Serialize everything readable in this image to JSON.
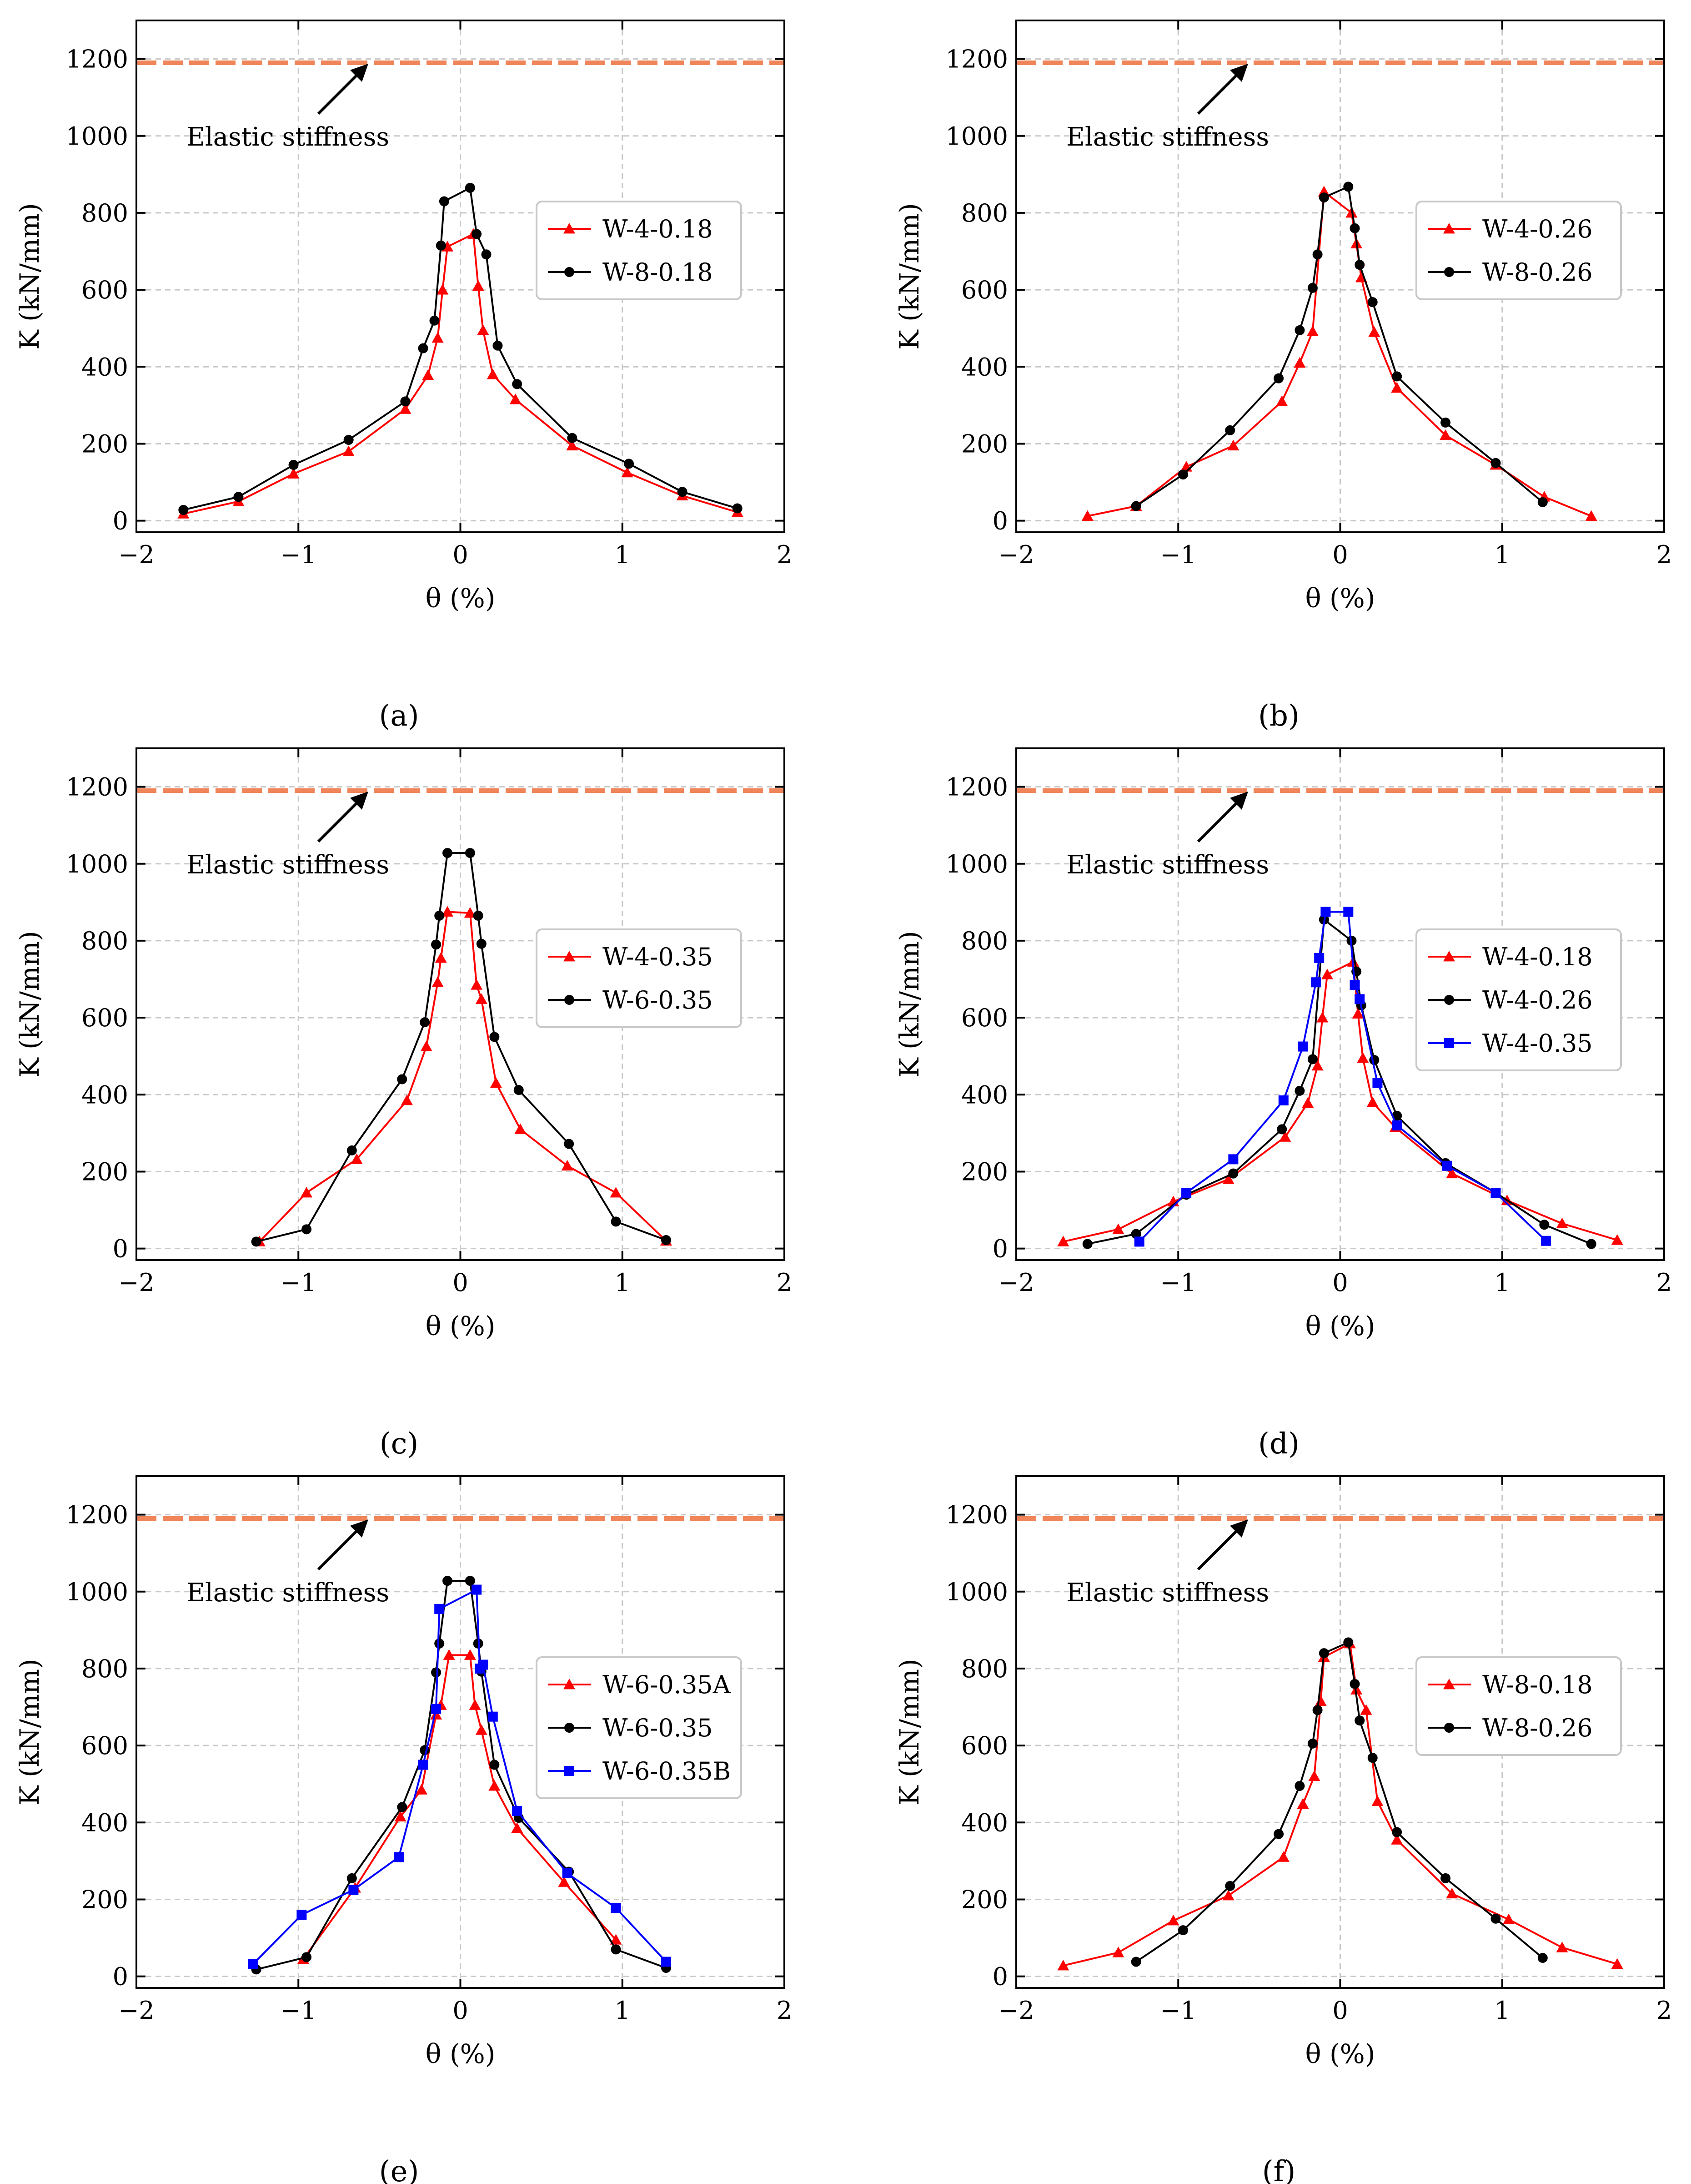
{
  "figure": {
    "common": {
      "xlabel": "θ (%)",
      "ylabel": "K (kN/mm)",
      "xticks": [
        -2,
        -1,
        0,
        1,
        2
      ],
      "xtick_labels": [
        "−2",
        "−1",
        "0",
        "1",
        "2"
      ],
      "yticks": [
        0,
        200,
        400,
        600,
        800,
        1000,
        1200
      ],
      "xlim": [
        -2,
        2
      ],
      "ylim": [
        -30,
        1300
      ],
      "elastic_value": 1190,
      "elastic_label": "Elastic stiffness",
      "elastic_color": "#f0855a",
      "grid": true
    }
  },
  "chart_data": [
    {
      "type": "line",
      "panel_label": "(a)",
      "xlabel": "θ (%)",
      "ylabel": "K (kN/mm)",
      "xlim": [
        -2,
        2
      ],
      "ylim": [
        -30,
        1300
      ],
      "legend": "right",
      "series": [
        {
          "name": "W-4-0.18",
          "color": "#ff0000",
          "marker": "triangle",
          "x": [
            -1.71,
            -1.37,
            -1.03,
            -0.69,
            -0.34,
            -0.2,
            -0.14,
            -0.11,
            -0.08,
            0.08,
            0.11,
            0.14,
            0.2,
            0.34,
            0.69,
            1.03,
            1.37,
            1.71
          ],
          "y": [
            18,
            50,
            122,
            180,
            290,
            378,
            475,
            600,
            712,
            745,
            610,
            495,
            380,
            315,
            195,
            125,
            65,
            22
          ]
        },
        {
          "name": "W-8-0.18",
          "color": "#000000",
          "marker": "circle",
          "x": [
            -1.71,
            -1.37,
            -1.03,
            -0.69,
            -0.34,
            -0.23,
            -0.16,
            -0.12,
            -0.1,
            0.06,
            0.1,
            0.16,
            0.23,
            0.35,
            0.69,
            1.04,
            1.37,
            1.71
          ],
          "y": [
            28,
            62,
            145,
            210,
            310,
            448,
            520,
            715,
            830,
            865,
            745,
            692,
            455,
            355,
            215,
            148,
            75,
            32
          ]
        }
      ]
    },
    {
      "type": "line",
      "panel_label": "(b)",
      "xlabel": "θ (%)",
      "ylabel": "K (kN/mm)",
      "xlim": [
        -2,
        2
      ],
      "ylim": [
        -30,
        1300
      ],
      "legend": "right",
      "series": [
        {
          "name": "W-4-0.26",
          "color": "#ff0000",
          "marker": "triangle",
          "x": [
            -1.56,
            -1.26,
            -0.95,
            -0.66,
            -0.36,
            -0.25,
            -0.17,
            -0.1,
            0.07,
            0.1,
            0.13,
            0.21,
            0.35,
            0.65,
            0.96,
            1.26,
            1.55
          ],
          "y": [
            12,
            38,
            140,
            195,
            310,
            410,
            492,
            855,
            800,
            720,
            632,
            490,
            345,
            222,
            145,
            62,
            12
          ]
        },
        {
          "name": "W-8-0.26",
          "color": "#000000",
          "marker": "circle",
          "x": [
            -1.26,
            -0.97,
            -0.68,
            -0.38,
            -0.25,
            -0.17,
            -0.14,
            -0.1,
            0.05,
            0.09,
            0.12,
            0.2,
            0.35,
            0.65,
            0.96,
            1.25
          ],
          "y": [
            38,
            120,
            235,
            370,
            495,
            605,
            692,
            840,
            868,
            760,
            665,
            568,
            375,
            255,
            150,
            48
          ]
        }
      ]
    },
    {
      "type": "line",
      "panel_label": "(c)",
      "xlabel": "θ (%)",
      "ylabel": "K (kN/mm)",
      "xlim": [
        -2,
        2
      ],
      "ylim": [
        -30,
        1300
      ],
      "legend": "right",
      "series": [
        {
          "name": "W-4-0.35",
          "color": "#ff0000",
          "marker": "triangle",
          "x": [
            -1.24,
            -0.95,
            -0.64,
            -0.33,
            -0.21,
            -0.14,
            -0.12,
            -0.08,
            0.06,
            0.1,
            0.13,
            0.22,
            0.37,
            0.66,
            0.96,
            1.27
          ],
          "y": [
            18,
            145,
            232,
            385,
            525,
            692,
            755,
            875,
            872,
            685,
            648,
            430,
            310,
            215,
            145,
            20
          ]
        },
        {
          "name": "W-6-0.35",
          "color": "#000000",
          "marker": "circle",
          "x": [
            -1.26,
            -0.95,
            -0.67,
            -0.36,
            -0.22,
            -0.15,
            -0.13,
            -0.08,
            0.06,
            0.11,
            0.13,
            0.21,
            0.36,
            0.67,
            0.96,
            1.27
          ],
          "y": [
            18,
            50,
            255,
            440,
            588,
            790,
            865,
            1028,
            1028,
            865,
            792,
            550,
            412,
            272,
            70,
            22
          ]
        }
      ]
    },
    {
      "type": "line",
      "panel_label": "(d)",
      "xlabel": "θ (%)",
      "ylabel": "K (kN/mm)",
      "xlim": [
        -2,
        2
      ],
      "ylim": [
        -30,
        1300
      ],
      "legend": "right",
      "series": [
        {
          "name": "W-4-0.18",
          "color": "#ff0000",
          "marker": "triangle",
          "x": [
            -1.71,
            -1.37,
            -1.03,
            -0.69,
            -0.34,
            -0.2,
            -0.14,
            -0.11,
            -0.08,
            0.08,
            0.11,
            0.14,
            0.2,
            0.34,
            0.69,
            1.03,
            1.37,
            1.71
          ],
          "y": [
            18,
            50,
            122,
            180,
            290,
            378,
            475,
            600,
            712,
            745,
            610,
            495,
            380,
            315,
            195,
            125,
            65,
            22
          ]
        },
        {
          "name": "W-4-0.26",
          "color": "#000000",
          "marker": "circle",
          "x": [
            -1.56,
            -1.26,
            -0.95,
            -0.66,
            -0.36,
            -0.25,
            -0.17,
            -0.1,
            0.07,
            0.1,
            0.13,
            0.21,
            0.35,
            0.65,
            0.96,
            1.26,
            1.55
          ],
          "y": [
            12,
            38,
            140,
            195,
            310,
            410,
            492,
            855,
            800,
            720,
            632,
            490,
            345,
            222,
            145,
            62,
            12
          ]
        },
        {
          "name": "W-4-0.35",
          "color": "#0000ff",
          "marker": "square",
          "x": [
            -1.24,
            -0.95,
            -0.66,
            -0.35,
            -0.23,
            -0.15,
            -0.13,
            -0.09,
            0.05,
            0.09,
            0.12,
            0.23,
            0.35,
            0.66,
            0.96,
            1.27
          ],
          "y": [
            18,
            145,
            232,
            385,
            525,
            692,
            755,
            875,
            875,
            685,
            648,
            430,
            320,
            215,
            145,
            20
          ]
        }
      ]
    },
    {
      "type": "line",
      "panel_label": "(e)",
      "xlabel": "θ (%)",
      "ylabel": "K (kN/mm)",
      "xlim": [
        -2,
        2
      ],
      "ylim": [
        -30,
        1300
      ],
      "legend": "right",
      "series": [
        {
          "name": "W-6-0.35A",
          "color": "#ff0000",
          "marker": "triangle",
          "x": [
            -0.97,
            -0.65,
            -0.37,
            -0.24,
            -0.15,
            -0.12,
            -0.07,
            0.06,
            0.09,
            0.13,
            0.21,
            0.35,
            0.64,
            0.96
          ],
          "y": [
            45,
            230,
            415,
            485,
            680,
            705,
            835,
            835,
            705,
            640,
            495,
            385,
            245,
            95
          ]
        },
        {
          "name": "W-6-0.35",
          "color": "#000000",
          "marker": "circle",
          "x": [
            -1.26,
            -0.95,
            -0.67,
            -0.36,
            -0.22,
            -0.15,
            -0.13,
            -0.08,
            0.06,
            0.11,
            0.13,
            0.21,
            0.36,
            0.67,
            0.96,
            1.27
          ],
          "y": [
            18,
            50,
            255,
            440,
            588,
            790,
            865,
            1028,
            1028,
            865,
            792,
            550,
            412,
            272,
            70,
            22
          ]
        },
        {
          "name": "W-6-0.35B",
          "color": "#0000ff",
          "marker": "square",
          "x": [
            -1.28,
            -0.98,
            -0.66,
            -0.38,
            -0.23,
            -0.15,
            -0.13,
            0.1,
            0.12,
            0.14,
            0.2,
            0.35,
            0.66,
            0.96,
            1.27
          ],
          "y": [
            32,
            160,
            225,
            310,
            550,
            695,
            955,
            1005,
            800,
            810,
            675,
            430,
            268,
            178,
            38
          ]
        }
      ]
    },
    {
      "type": "line",
      "panel_label": "(f)",
      "xlabel": "θ (%)",
      "ylabel": "K (kN/mm)",
      "xlim": [
        -2,
        2
      ],
      "ylim": [
        -30,
        1300
      ],
      "legend": "right",
      "series": [
        {
          "name": "W-8-0.18",
          "color": "#ff0000",
          "marker": "triangle",
          "x": [
            -1.71,
            -1.37,
            -1.03,
            -0.69,
            -0.35,
            -0.23,
            -0.16,
            -0.12,
            -0.1,
            0.06,
            0.1,
            0.16,
            0.23,
            0.35,
            0.69,
            1.04,
            1.37,
            1.71
          ],
          "y": [
            28,
            62,
            145,
            210,
            310,
            448,
            520,
            715,
            830,
            865,
            745,
            692,
            455,
            355,
            215,
            148,
            75,
            32
          ]
        },
        {
          "name": "W-8-0.26",
          "color": "#000000",
          "marker": "circle",
          "x": [
            -1.26,
            -0.97,
            -0.68,
            -0.38,
            -0.25,
            -0.17,
            -0.14,
            -0.1,
            0.05,
            0.09,
            0.12,
            0.2,
            0.35,
            0.65,
            0.96,
            1.25
          ],
          "y": [
            38,
            120,
            235,
            370,
            495,
            605,
            692,
            840,
            868,
            760,
            665,
            568,
            375,
            255,
            150,
            48
          ]
        }
      ]
    }
  ]
}
